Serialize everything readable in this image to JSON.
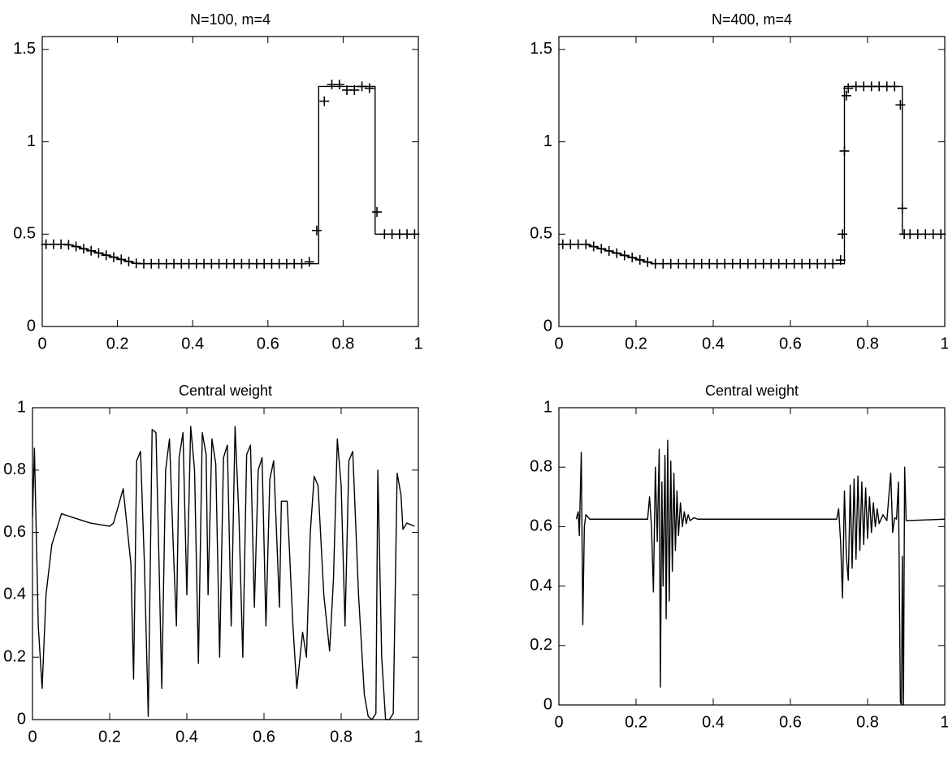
{
  "chart_data": [
    {
      "type": "line",
      "title": "N=100, m=4",
      "xlim": [
        0,
        1
      ],
      "ylim": [
        0,
        1.57
      ],
      "xticks": [
        0,
        0.2,
        0.4,
        0.6,
        0.8,
        1
      ],
      "yticks": [
        0,
        0.5,
        1,
        1.5
      ],
      "series": [
        {
          "color": "#000000",
          "linestyle": "solid",
          "x": [
            0,
            0.07,
            0.25,
            0.735,
            0.735,
            0.885,
            0.885,
            1
          ],
          "values": [
            0.445,
            0.445,
            0.34,
            0.34,
            1.3,
            1.3,
            0.5,
            0.5
          ]
        },
        {
          "color": "#000000",
          "marker": "+",
          "x": [
            0.01,
            0.03,
            0.05,
            0.07,
            0.09,
            0.11,
            0.13,
            0.15,
            0.17,
            0.19,
            0.21,
            0.23,
            0.25,
            0.27,
            0.29,
            0.31,
            0.33,
            0.35,
            0.37,
            0.39,
            0.41,
            0.43,
            0.45,
            0.47,
            0.49,
            0.51,
            0.53,
            0.55,
            0.57,
            0.59,
            0.61,
            0.63,
            0.65,
            0.67,
            0.69,
            0.71,
            0.73,
            0.75,
            0.77,
            0.79,
            0.81,
            0.83,
            0.85,
            0.87,
            0.89,
            0.91,
            0.93,
            0.95,
            0.97,
            0.99
          ],
          "values": [
            0.445,
            0.445,
            0.445,
            0.442,
            0.433,
            0.421,
            0.41,
            0.398,
            0.386,
            0.375,
            0.363,
            0.352,
            0.342,
            0.34,
            0.34,
            0.34,
            0.34,
            0.34,
            0.34,
            0.34,
            0.34,
            0.34,
            0.34,
            0.34,
            0.34,
            0.34,
            0.34,
            0.34,
            0.34,
            0.34,
            0.34,
            0.34,
            0.34,
            0.34,
            0.34,
            0.35,
            0.52,
            1.22,
            1.31,
            1.31,
            1.28,
            1.28,
            1.3,
            1.29,
            0.62,
            0.5,
            0.5,
            0.5,
            0.5,
            0.5
          ]
        }
      ]
    },
    {
      "type": "line",
      "title": "N=400, m=4",
      "xlim": [
        0,
        1
      ],
      "ylim": [
        0,
        1.57
      ],
      "xticks": [
        0,
        0.2,
        0.4,
        0.6,
        0.8,
        1
      ],
      "yticks": [
        0,
        0.5,
        1,
        1.5
      ],
      "series": [
        {
          "color": "#000000",
          "linestyle": "solid",
          "x": [
            0,
            0.07,
            0.245,
            0.74,
            0.74,
            0.89,
            0.89,
            1
          ],
          "values": [
            0.445,
            0.445,
            0.34,
            0.34,
            1.3,
            1.3,
            0.5,
            0.5
          ]
        },
        {
          "color": "#000000",
          "marker": "+",
          "x": [
            0.01,
            0.03,
            0.05,
            0.07,
            0.09,
            0.11,
            0.13,
            0.15,
            0.17,
            0.19,
            0.21,
            0.23,
            0.25,
            0.27,
            0.29,
            0.31,
            0.33,
            0.35,
            0.37,
            0.39,
            0.41,
            0.43,
            0.45,
            0.47,
            0.49,
            0.51,
            0.53,
            0.55,
            0.57,
            0.59,
            0.61,
            0.63,
            0.65,
            0.67,
            0.69,
            0.71,
            0.73,
            0.735,
            0.74,
            0.745,
            0.75,
            0.77,
            0.79,
            0.81,
            0.83,
            0.85,
            0.87,
            0.885,
            0.89,
            0.895,
            0.91,
            0.93,
            0.95,
            0.97,
            0.99
          ],
          "values": [
            0.445,
            0.445,
            0.445,
            0.445,
            0.433,
            0.421,
            0.409,
            0.397,
            0.385,
            0.373,
            0.361,
            0.349,
            0.34,
            0.34,
            0.34,
            0.34,
            0.34,
            0.34,
            0.34,
            0.34,
            0.34,
            0.34,
            0.34,
            0.34,
            0.34,
            0.34,
            0.34,
            0.34,
            0.34,
            0.34,
            0.34,
            0.34,
            0.34,
            0.34,
            0.34,
            0.34,
            0.36,
            0.5,
            0.95,
            1.25,
            1.29,
            1.3,
            1.3,
            1.3,
            1.3,
            1.3,
            1.3,
            1.2,
            0.64,
            0.5,
            0.5,
            0.5,
            0.5,
            0.5,
            0.5
          ]
        }
      ]
    },
    {
      "type": "line",
      "title": "Central weight",
      "xlim": [
        0,
        1
      ],
      "ylim": [
        0,
        1
      ],
      "xticks": [
        0,
        0.2,
        0.4,
        0.6,
        0.8,
        1
      ],
      "yticks": [
        0,
        0.2,
        0.4,
        0.6,
        0.8,
        1
      ],
      "series": [
        {
          "color": "#000000",
          "linestyle": "solid",
          "x": [
            0,
            0.005,
            0.015,
            0.025,
            0.035,
            0.05,
            0.075,
            0.1,
            0.15,
            0.2,
            0.21,
            0.235,
            0.245,
            0.255,
            0.262,
            0.27,
            0.28,
            0.29,
            0.3,
            0.31,
            0.32,
            0.328,
            0.335,
            0.345,
            0.355,
            0.365,
            0.373,
            0.38,
            0.39,
            0.4,
            0.41,
            0.42,
            0.43,
            0.44,
            0.45,
            0.455,
            0.465,
            0.475,
            0.485,
            0.495,
            0.505,
            0.515,
            0.525,
            0.535,
            0.545,
            0.555,
            0.565,
            0.575,
            0.585,
            0.595,
            0.605,
            0.615,
            0.625,
            0.635,
            0.64,
            0.645,
            0.66,
            0.675,
            0.685,
            0.7,
            0.71,
            0.72,
            0.73,
            0.74,
            0.755,
            0.77,
            0.78,
            0.79,
            0.8,
            0.81,
            0.82,
            0.83,
            0.845,
            0.86,
            0.87,
            0.88,
            0.89,
            0.895,
            0.905,
            0.915,
            0.925,
            0.935,
            0.945,
            0.955,
            0.96,
            0.97,
            0.99
          ],
          "values": [
            0.65,
            0.87,
            0.3,
            0.1,
            0.4,
            0.56,
            0.66,
            0.65,
            0.63,
            0.62,
            0.63,
            0.74,
            0.62,
            0.5,
            0.13,
            0.83,
            0.86,
            0.5,
            0.01,
            0.93,
            0.92,
            0.5,
            0.1,
            0.8,
            0.9,
            0.55,
            0.3,
            0.84,
            0.92,
            0.4,
            0.94,
            0.8,
            0.18,
            0.92,
            0.85,
            0.4,
            0.9,
            0.82,
            0.2,
            0.84,
            0.88,
            0.3,
            0.94,
            0.65,
            0.2,
            0.85,
            0.88,
            0.36,
            0.8,
            0.84,
            0.3,
            0.77,
            0.83,
            0.52,
            0.36,
            0.7,
            0.7,
            0.3,
            0.1,
            0.28,
            0.2,
            0.6,
            0.78,
            0.75,
            0.4,
            0.22,
            0.45,
            0.9,
            0.75,
            0.3,
            0.83,
            0.86,
            0.4,
            0.08,
            0.01,
            0,
            0.02,
            0.8,
            0.2,
            0,
            0,
            0.02,
            0.79,
            0.72,
            0.61,
            0.63,
            0.62
          ]
        }
      ]
    },
    {
      "type": "line",
      "title": "Central weight",
      "xlim": [
        0,
        1
      ],
      "ylim": [
        0,
        1
      ],
      "xticks": [
        0,
        0.2,
        0.4,
        0.6,
        0.8,
        1
      ],
      "yticks": [
        0,
        0.2,
        0.4,
        0.6,
        0.8,
        1
      ],
      "series": [
        {
          "color": "#000000",
          "linestyle": "solid",
          "x": [
            0.045,
            0.05,
            0.053,
            0.058,
            0.062,
            0.066,
            0.07,
            0.08,
            0.23,
            0.235,
            0.24,
            0.245,
            0.25,
            0.255,
            0.26,
            0.263,
            0.267,
            0.27,
            0.275,
            0.278,
            0.282,
            0.286,
            0.29,
            0.294,
            0.298,
            0.302,
            0.306,
            0.31,
            0.315,
            0.32,
            0.325,
            0.33,
            0.335,
            0.34,
            0.35,
            0.36,
            0.72,
            0.725,
            0.73,
            0.735,
            0.74,
            0.745,
            0.75,
            0.755,
            0.76,
            0.765,
            0.77,
            0.775,
            0.78,
            0.785,
            0.79,
            0.795,
            0.8,
            0.805,
            0.81,
            0.815,
            0.82,
            0.825,
            0.83,
            0.84,
            0.85,
            0.86,
            0.865,
            0.87,
            0.875,
            0.88,
            0.885,
            0.888,
            0.89,
            0.893,
            0.896,
            0.9,
            1
          ],
          "values": [
            0.625,
            0.65,
            0.57,
            0.85,
            0.27,
            0.6,
            0.64,
            0.625,
            0.625,
            0.7,
            0.6,
            0.38,
            0.8,
            0.55,
            0.86,
            0.06,
            0.75,
            0.4,
            0.84,
            0.29,
            0.89,
            0.35,
            0.82,
            0.45,
            0.78,
            0.52,
            0.72,
            0.57,
            0.68,
            0.6,
            0.65,
            0.61,
            0.64,
            0.62,
            0.63,
            0.625,
            0.625,
            0.66,
            0.55,
            0.36,
            0.72,
            0.5,
            0.42,
            0.74,
            0.46,
            0.76,
            0.49,
            0.77,
            0.52,
            0.75,
            0.54,
            0.73,
            0.56,
            0.7,
            0.58,
            0.68,
            0.6,
            0.66,
            0.61,
            0.64,
            0.62,
            0.78,
            0.58,
            0.63,
            0.625,
            0.75,
            0.01,
            0,
            0.5,
            0,
            0.8,
            0.62,
            0.625
          ]
        }
      ]
    }
  ]
}
